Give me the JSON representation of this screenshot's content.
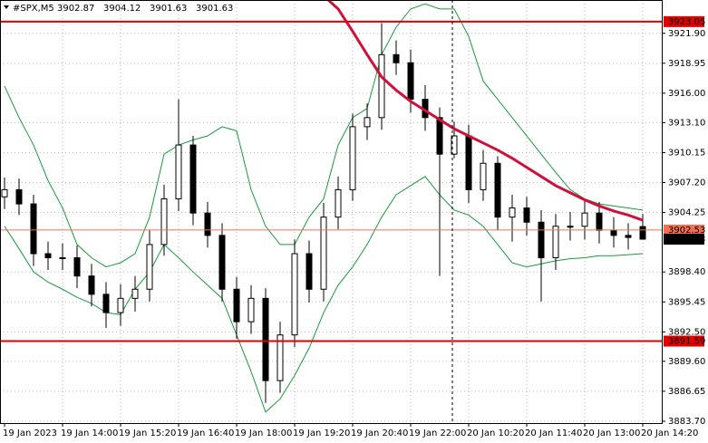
{
  "chart_data": {
    "type": "candlestick",
    "title": "#SPX,M5",
    "open": [
      3905.8,
      3906.5,
      3905.1,
      3900.2,
      3899.8,
      3899.8,
      3898.0,
      3896.2,
      3894.4,
      3895.8,
      3896.7,
      3901.1,
      3905.6,
      3910.9,
      3904.2,
      3902.0,
      3896.7,
      3893.5,
      3895.8,
      3887.7,
      3892.2,
      3900.2,
      3896.7,
      3903.8,
      3906.5,
      3912.7,
      3913.6,
      3919.8,
      3919.0,
      3915.4,
      3913.6,
      3910.0,
      3911.8,
      3906.5,
      3909.1,
      3903.8,
      3904.7,
      3903.3,
      3899.8,
      3902.9,
      3902.9,
      3904.2,
      3902.5,
      3902.0,
      3902.87
    ],
    "high": [
      3907.7,
      3907.6,
      3906.0,
      3901.4,
      3901.2,
      3901.0,
      3899.2,
      3897.4,
      3897.2,
      3898.0,
      3902.5,
      3907.0,
      3915.4,
      3911.8,
      3905.3,
      3903.2,
      3897.9,
      3897.1,
      3896.8,
      3893.5,
      3901.6,
      3901.5,
      3905.2,
      3907.8,
      3914.0,
      3915.0,
      3922.9,
      3921.2,
      3920.3,
      3916.8,
      3914.6,
      3913.2,
      3912.9,
      3910.4,
      3909.8,
      3906.0,
      3905.8,
      3904.5,
      3904.1,
      3904.3,
      3905.6,
      3905.3,
      3903.8,
      3903.2,
      3904.12
    ],
    "low": [
      3904.6,
      3904.0,
      3899.0,
      3898.6,
      3898.6,
      3896.8,
      3895.0,
      3892.9,
      3893.1,
      3894.5,
      3895.5,
      3900.0,
      3904.4,
      3903.0,
      3900.8,
      3895.5,
      3891.8,
      3892.3,
      3885.5,
      3886.5,
      3891.0,
      3895.4,
      3895.5,
      3902.6,
      3905.4,
      3911.4,
      3912.4,
      3917.8,
      3914.1,
      3912.3,
      3898.0,
      3909.6,
      3905.2,
      3905.4,
      3902.5,
      3901.4,
      3902.0,
      3895.5,
      3898.6,
      3901.5,
      3901.6,
      3901.2,
      3900.8,
      3900.6,
      3901.63
    ],
    "close": [
      3906.5,
      3905.1,
      3900.2,
      3899.8,
      3899.8,
      3898.0,
      3896.2,
      3894.4,
      3895.8,
      3896.7,
      3901.1,
      3905.6,
      3910.9,
      3904.2,
      3902.0,
      3896.7,
      3893.5,
      3895.8,
      3887.7,
      3892.2,
      3900.2,
      3896.7,
      3903.8,
      3906.5,
      3912.7,
      3913.6,
      3919.8,
      3919.0,
      3915.4,
      3913.6,
      3910.0,
      3911.8,
      3906.5,
      3909.1,
      3903.8,
      3904.7,
      3903.3,
      3899.8,
      3902.9,
      3902.9,
      3904.2,
      3902.5,
      3902.0,
      3901.8,
      3901.63
    ],
    "bands": {
      "color": "#1a9a3a",
      "upper": [
        3916.7,
        3913.6,
        3910.9,
        3907.4,
        3904.7,
        3901.1,
        3899.8,
        3898.9,
        3899.3,
        3900.2,
        3903.8,
        3910.0,
        3910.9,
        3911.4,
        3911.8,
        3912.7,
        3912.3,
        3906.5,
        3902.9,
        3901.1,
        3901.1,
        3903.8,
        3905.6,
        3910.9,
        3913.6,
        3914.5,
        3919.8,
        3922.5,
        3924.3,
        3924.8,
        3924.3,
        3924.3,
        3921.6,
        3917.2,
        3915.4,
        3913.6,
        3911.8,
        3910.0,
        3908.2,
        3906.5,
        3905.6,
        3905.1,
        3904.9,
        3904.7,
        3904.5
      ],
      "lower": [
        3902.9,
        3900.7,
        3898.4,
        3897.4,
        3896.7,
        3895.9,
        3895.3,
        3894.4,
        3894.2,
        3896.7,
        3898.4,
        3901.1,
        3899.8,
        3898.4,
        3897.1,
        3895.8,
        3892.2,
        3888.6,
        3884.6,
        3885.9,
        3888.2,
        3890.9,
        3894.4,
        3897.1,
        3898.9,
        3901.1,
        3903.8,
        3906.0,
        3906.9,
        3907.8,
        3906.0,
        3904.5,
        3904.0,
        3902.9,
        3901.1,
        3899.3,
        3898.9,
        3899.2,
        3899.5,
        3899.7,
        3899.8,
        3900.0,
        3900.0,
        3900.1,
        3900.2
      ]
    },
    "ma": {
      "color": "#d0103a",
      "values": [
        null,
        null,
        null,
        null,
        null,
        null,
        null,
        null,
        null,
        null,
        null,
        null,
        null,
        null,
        null,
        null,
        null,
        null,
        null,
        null,
        null,
        null,
        3925.6,
        3924.3,
        3922.1,
        3919.8,
        3917.6,
        3916.3,
        3915.2,
        3914.3,
        3913.4,
        3912.5,
        3911.8,
        3911.1,
        3910.4,
        3909.6,
        3908.7,
        3907.8,
        3906.9,
        3906.2,
        3905.5,
        3904.9,
        3904.4,
        3904.0,
        3903.5
      ]
    },
    "levels": [
      {
        "value": 3923.05,
        "color": "#e00000"
      },
      {
        "value": 3902.53,
        "color": "#f07050"
      },
      {
        "value": 3891.59,
        "color": "#e00000"
      }
    ],
    "ylim": [
      3883.52,
      3925.18
    ],
    "yticks": [
      {
        "value": 3921.9,
        "label": "3921.90"
      },
      {
        "value": 3918.95,
        "label": "3918.95"
      },
      {
        "value": 3916.0,
        "label": "3916.00"
      },
      {
        "value": 3913.1,
        "label": "3913.10"
      },
      {
        "value": 3910.15,
        "label": "3910.15"
      },
      {
        "value": 3907.2,
        "label": "3907.20"
      },
      {
        "value": 3904.25,
        "label": "3904.25"
      },
      {
        "value": 3898.4,
        "label": "3898.40"
      },
      {
        "value": 3895.45,
        "label": "3895.45"
      },
      {
        "value": 3892.5,
        "label": "3892.50"
      },
      {
        "value": 3889.6,
        "label": "3889.60"
      },
      {
        "value": 3886.65,
        "label": "3886.65"
      },
      {
        "value": 3883.7,
        "label": "3883.70"
      }
    ],
    "x_labels": [
      "19 Jan 2023",
      "19 Jan 14:00",
      "19 Jan 15:20",
      "19 Jan 16:40",
      "19 Jan 18:00",
      "19 Jan 19:20",
      "19 Jan 20:40",
      "19 Jan 22:00",
      "20 Jan 10:20",
      "20 Jan 11:40",
      "20 Jan 13:00",
      "20 Jan 14:20"
    ],
    "grid": true
  }
}
